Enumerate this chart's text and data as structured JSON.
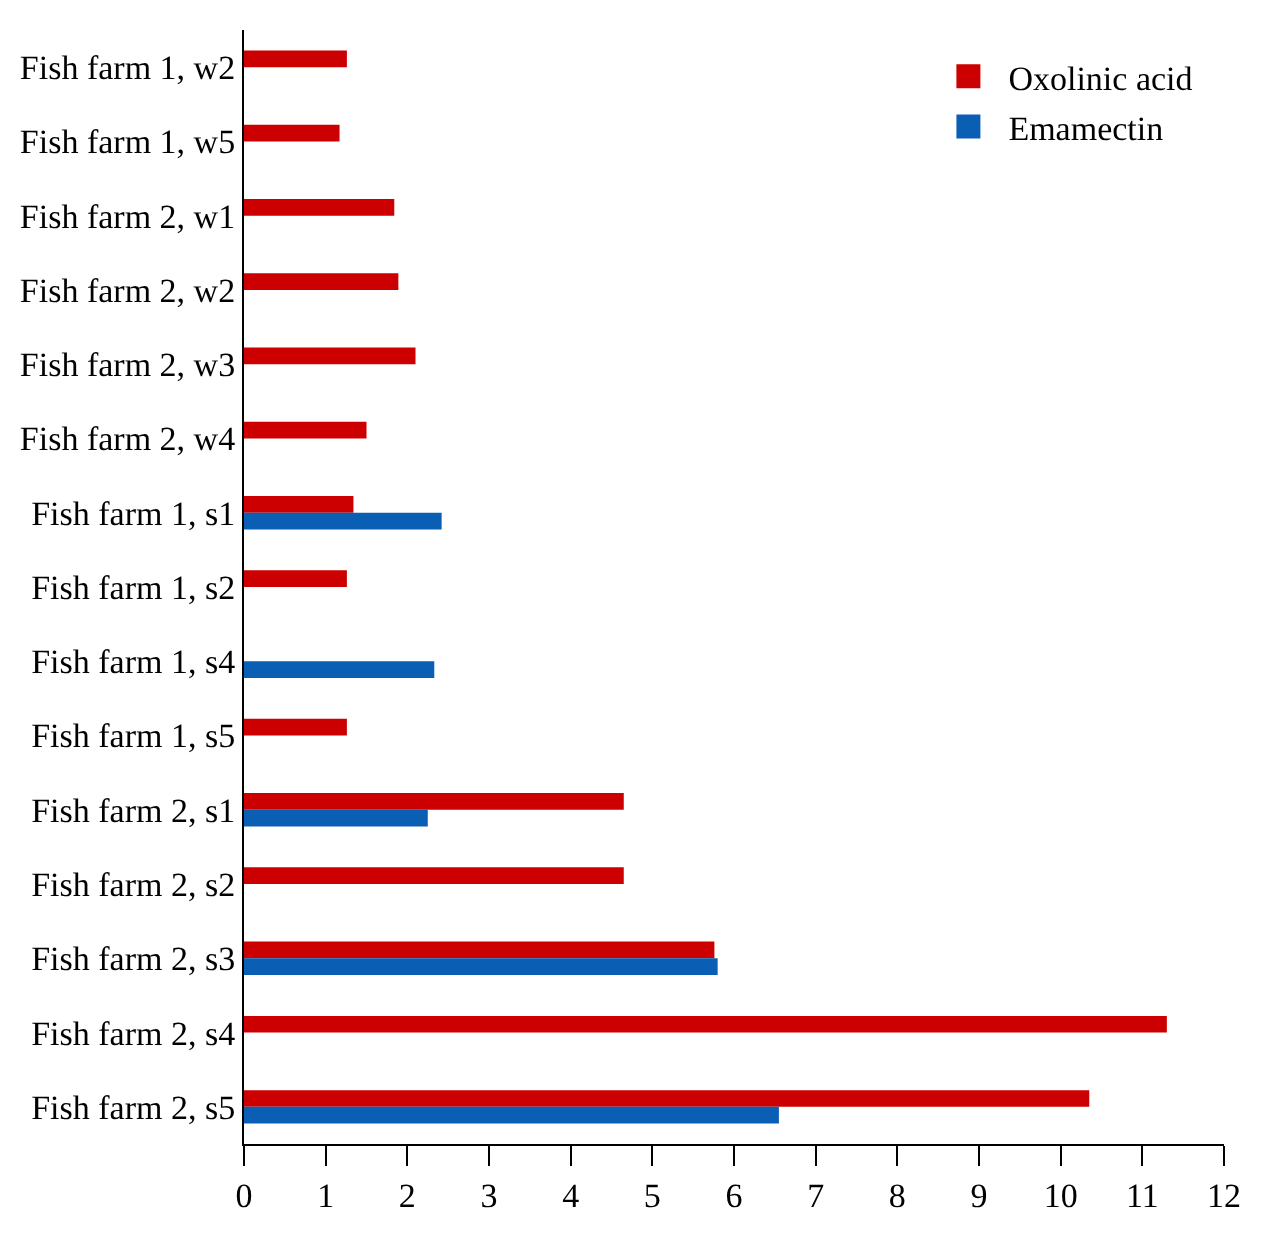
{
  "chart_data": {
    "type": "bar",
    "orientation": "horizontal",
    "categories": [
      "Fish farm 1, w2",
      "Fish farm 1, w5",
      "Fish farm 2, w1",
      "Fish farm 2, w2",
      "Fish farm 2, w3",
      "Fish farm 2, w4",
      "Fish farm 1, s1",
      "Fish farm 1, s2",
      "Fish farm 1, s4",
      "Fish farm 1, s5",
      "Fish farm 2, s1",
      "Fish farm 2, s2",
      "Fish farm 2, s3",
      "Fish farm 2, s4",
      "Fish farm 2, s5"
    ],
    "series": [
      {
        "name": "Oxolinic acid",
        "color": "#cc0000",
        "values": [
          1.26,
          1.17,
          1.84,
          1.89,
          2.1,
          1.5,
          1.34,
          1.26,
          null,
          1.26,
          4.65,
          4.65,
          5.76,
          11.3,
          10.35
        ]
      },
      {
        "name": "Emamectin",
        "color": "#0a5fb4",
        "values": [
          null,
          null,
          null,
          null,
          null,
          null,
          2.42,
          null,
          2.33,
          null,
          2.25,
          null,
          5.8,
          null,
          6.55
        ]
      }
    ],
    "xlim": [
      0,
      12
    ],
    "xticks": [
      0,
      1,
      2,
      3,
      4,
      5,
      6,
      7,
      8,
      9,
      10,
      11,
      12
    ],
    "legend": "top right"
  }
}
